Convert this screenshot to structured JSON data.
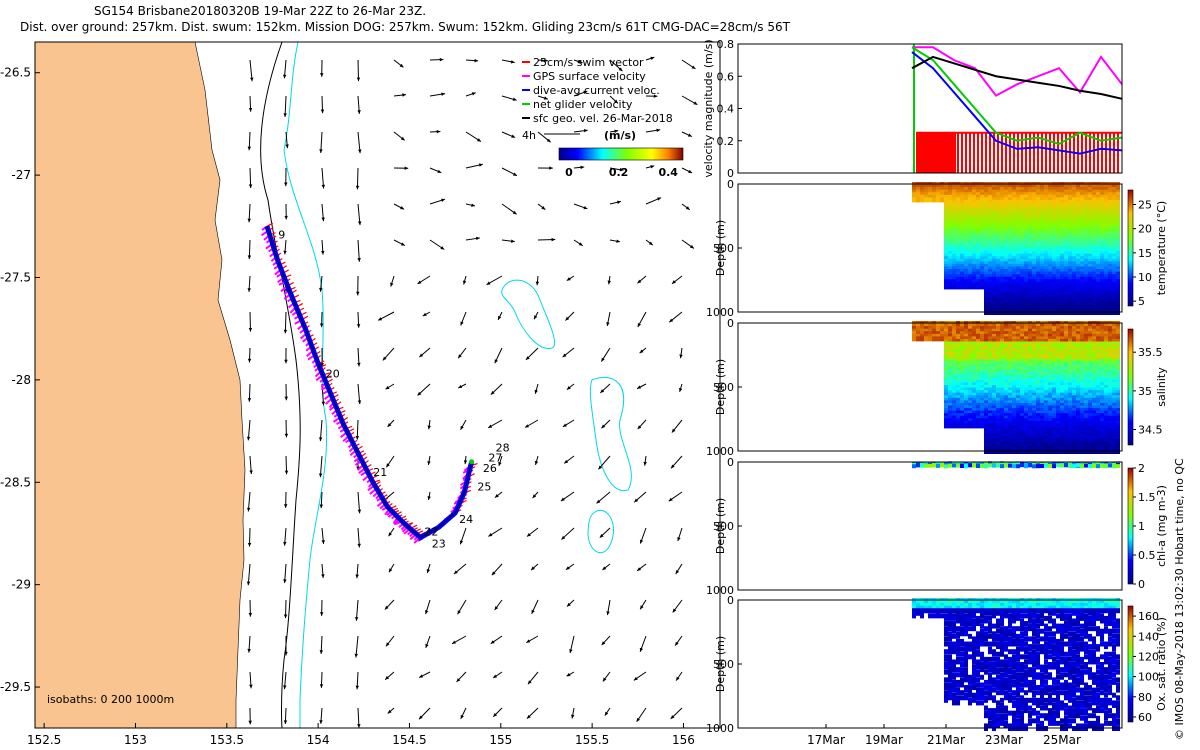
{
  "title": {
    "line1": "SG154 Brisbane20180320B 19-Mar 22Z to 26-Mar 23Z.",
    "line2": "Dist. over ground: 257km. Dist. swum: 152km. Mission DOG: 257km. Swum: 152km. Gliding 23cm/s 61T CMG-DAC=28cm/s 56T"
  },
  "credit": "© IMOS 08-May-2018 13:02:30 Hobart time, no QC",
  "colors": {
    "land": "#f9c48f",
    "isobath_200": "#000000",
    "isobath_1000": "#00d8e8",
    "swim": "#ff0000",
    "gps": "#ff00ff",
    "dac": "#0000ff",
    "net": "#00cc00",
    "geo": "#000000"
  },
  "chart_data": [
    {
      "type": "map",
      "name": "track map",
      "xlim": [
        152.45,
        156.2
      ],
      "ylim": [
        -29.7,
        -26.35
      ],
      "x_ticks": [
        "152.5",
        "153",
        "153.5",
        "154",
        "154.5",
        "155",
        "155.5",
        "156"
      ],
      "y_ticks": [
        "-26.5",
        "-27",
        "-27.5",
        "-28",
        "-28.5",
        "-29",
        "-29.5"
      ],
      "legend": {
        "position": "top-right",
        "entries": [
          {
            "label": "25cm/s swim vector",
            "color": "#ff0000"
          },
          {
            "label": "GPS surface velocity",
            "color": "#ff00ff"
          },
          {
            "label": "dive-avg current veloc.",
            "color": "#0000ff"
          },
          {
            "label": "net glider velocity",
            "color": "#00cc00"
          },
          {
            "label": "sfc geo. vel. 26-Mar-2018",
            "color": "#000000"
          }
        ]
      },
      "colorbar": {
        "unit_label": "(m/s)",
        "ticks": [
          "0",
          "0.2",
          "0.4"
        ],
        "range": [
          0,
          0.5
        ],
        "arrow_label": "4h"
      },
      "isobath_label": "isobaths: 0   200   1000m",
      "track": [
        [
          153.72,
          -27.25
        ],
        [
          153.78,
          -27.42
        ],
        [
          153.85,
          -27.58
        ],
        [
          153.93,
          -27.75
        ],
        [
          154.0,
          -27.92
        ],
        [
          154.07,
          -28.07
        ],
        [
          154.14,
          -28.22
        ],
        [
          154.22,
          -28.36
        ],
        [
          154.3,
          -28.5
        ],
        [
          154.38,
          -28.62
        ],
        [
          154.47,
          -28.7
        ],
        [
          154.56,
          -28.77
        ],
        [
          154.66,
          -28.72
        ],
        [
          154.75,
          -28.65
        ],
        [
          154.8,
          -28.55
        ],
        [
          154.84,
          -28.4
        ]
      ],
      "day_labels": [
        {
          "text": "9",
          "lon": 153.76,
          "lat": -27.29
        },
        {
          "text": "20",
          "lon": 154.02,
          "lat": -27.97
        },
        {
          "text": "21",
          "lon": 154.28,
          "lat": -28.45
        },
        {
          "text": "22",
          "lon": 154.56,
          "lat": -28.74
        },
        {
          "text": "23",
          "lon": 154.6,
          "lat": -28.8
        },
        {
          "text": "24",
          "lon": 154.75,
          "lat": -28.68
        },
        {
          "text": "25",
          "lon": 154.85,
          "lat": -28.52
        },
        {
          "text": "26",
          "lon": 154.88,
          "lat": -28.43
        },
        {
          "text": "27",
          "lon": 154.91,
          "lat": -28.38
        },
        {
          "text": "28",
          "lon": 154.95,
          "lat": -28.33
        }
      ]
    },
    {
      "type": "line",
      "name": "velocity magnitude",
      "ylabel": "velocity magnitude (m/s)",
      "ylim": [
        0,
        0.8
      ],
      "yticks": [
        "0",
        "0.2",
        "0.4",
        "0.6",
        "0.8"
      ],
      "x_labels": [
        "17Mar",
        "19Mar",
        "21Mar",
        "23Mar",
        "25Mar"
      ],
      "series": [
        {
          "color": "#ff0000",
          "x": [
            0.0,
            1.0
          ],
          "y": [
            0.25,
            0.25
          ]
        },
        {
          "color": "#ff00ff",
          "x": [
            0.0,
            0.1,
            0.2,
            0.3,
            0.4,
            0.5,
            0.6,
            0.7,
            0.8,
            0.9,
            1.0
          ],
          "y": [
            0.78,
            0.78,
            0.7,
            0.65,
            0.48,
            0.55,
            0.6,
            0.65,
            0.5,
            0.72,
            0.55
          ]
        },
        {
          "color": "#00cc00",
          "x": [
            0.0,
            0.1,
            0.2,
            0.3,
            0.4,
            0.5,
            0.6,
            0.7,
            0.8,
            0.9,
            1.0
          ],
          "y": [
            0.78,
            0.7,
            0.55,
            0.4,
            0.25,
            0.2,
            0.22,
            0.18,
            0.25,
            0.2,
            0.22
          ]
        },
        {
          "color": "#0000ff",
          "x": [
            0.0,
            0.1,
            0.2,
            0.3,
            0.4,
            0.5,
            0.6,
            0.7,
            0.8,
            0.9,
            1.0
          ],
          "y": [
            0.75,
            0.65,
            0.5,
            0.35,
            0.2,
            0.15,
            0.16,
            0.14,
            0.12,
            0.15,
            0.14
          ]
        },
        {
          "color": "#000000",
          "x": [
            0.0,
            0.1,
            0.2,
            0.3,
            0.4,
            0.5,
            0.6,
            0.7,
            0.8,
            0.9,
            1.0
          ],
          "y": [
            0.65,
            0.72,
            0.68,
            0.64,
            0.6,
            0.58,
            0.56,
            0.54,
            0.51,
            0.49,
            0.46
          ]
        }
      ]
    },
    {
      "type": "scatter",
      "name": "temperature section",
      "ylabel": "Depth (m)",
      "yticks": [
        "0",
        "500",
        "1000"
      ],
      "colorbar_label": "temperature (°C)",
      "colorbar_ticks": [
        "5",
        "10",
        "15",
        "20",
        "25"
      ],
      "colorbar_range": [
        4,
        28
      ]
    },
    {
      "type": "scatter",
      "name": "salinity section",
      "ylabel": "Depth (m)",
      "yticks": [
        "0",
        "500",
        "1000"
      ],
      "colorbar_label": "salinity",
      "colorbar_ticks": [
        "34.5",
        "35",
        "35.5"
      ],
      "colorbar_range": [
        34.3,
        35.8
      ]
    },
    {
      "type": "scatter",
      "name": "chl-a section",
      "ylabel": "Depth (m)",
      "yticks": [
        "0",
        "500",
        "1000"
      ],
      "colorbar_label": "chl-a (mg m-3)",
      "colorbar_ticks": [
        "0",
        "0.5",
        "1",
        "1.5",
        "2"
      ],
      "colorbar_range": [
        0,
        2
      ]
    },
    {
      "type": "scatter",
      "name": "oxygen section",
      "ylabel": "Depth (m)",
      "yticks": [
        "0",
        "500",
        "1000"
      ],
      "colorbar_label": "Ox. sat. ratio (%)",
      "colorbar_ticks": [
        "60",
        "80",
        "100",
        "120",
        "140",
        "160"
      ],
      "colorbar_range": [
        55,
        170
      ],
      "x_labels": [
        "17Mar",
        "19Mar",
        "21Mar",
        "23Mar",
        "25Mar"
      ]
    }
  ]
}
